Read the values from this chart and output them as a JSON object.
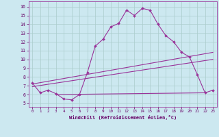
{
  "xlabel": "Windchill (Refroidissement éolien,°C)",
  "bg_color": "#cce8f0",
  "grid_color": "#aacccc",
  "line_color": "#993399",
  "x_ticks": [
    0,
    1,
    2,
    3,
    4,
    5,
    6,
    7,
    8,
    9,
    10,
    11,
    12,
    13,
    14,
    15,
    16,
    17,
    18,
    19,
    20,
    21,
    22,
    23
  ],
  "y_ticks": [
    5,
    6,
    7,
    8,
    9,
    10,
    11,
    12,
    13,
    14,
    15,
    16
  ],
  "ylim": [
    4.6,
    16.6
  ],
  "xlim": [
    -0.5,
    23.5
  ],
  "curve1_x": [
    0,
    1,
    2,
    3,
    4,
    5,
    6,
    7,
    8,
    9,
    10,
    11,
    12,
    13,
    14,
    15,
    16,
    17,
    18,
    19,
    20,
    21,
    22,
    23
  ],
  "curve1_y": [
    7.3,
    6.2,
    6.5,
    6.1,
    5.5,
    5.4,
    6.0,
    8.5,
    11.5,
    12.3,
    13.7,
    14.1,
    15.6,
    15.0,
    15.8,
    15.6,
    14.0,
    12.7,
    12.0,
    10.8,
    10.3,
    8.3,
    6.2,
    6.5
  ],
  "line2_x": [
    0,
    23
  ],
  "line2_y": [
    7.2,
    10.8
  ],
  "line3_x": [
    0,
    23
  ],
  "line3_y": [
    6.9,
    10.0
  ],
  "line4_x": [
    3,
    22
  ],
  "line4_y": [
    6.0,
    6.2
  ]
}
